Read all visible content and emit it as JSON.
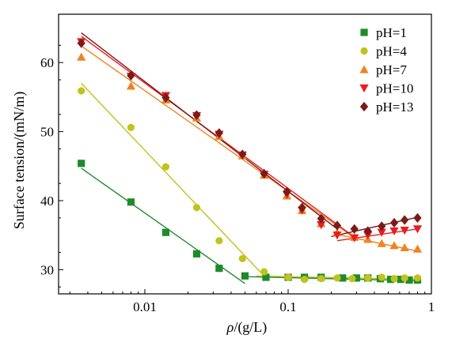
{
  "chart_data": {
    "type": "scatter",
    "xlabel_rho": "ρ",
    "xlabel_unit": "/(g/L)",
    "ylabel": "Surface tension/(mN/m)",
    "xscale": "log",
    "xlim": [
      0.0025,
      1
    ],
    "ylim": [
      26.5,
      67
    ],
    "x_ticks": [
      {
        "value": 0.01,
        "label": "0.01"
      },
      {
        "value": 0.1,
        "label": "0.1"
      },
      {
        "value": 1,
        "label": "1"
      }
    ],
    "y_ticks": [
      {
        "value": 30,
        "label": "30"
      },
      {
        "value": 40,
        "label": "40"
      },
      {
        "value": 50,
        "label": "50"
      },
      {
        "value": 60,
        "label": "60"
      }
    ],
    "legend_position": "top-right",
    "series": [
      {
        "name": "pH=1",
        "marker": "square",
        "color": "#1f8a2c",
        "x": [
          0.0036,
          0.008,
          0.014,
          0.023,
          0.033,
          0.05,
          0.07,
          0.1,
          0.13,
          0.17,
          0.24,
          0.3,
          0.36,
          0.44,
          0.52,
          0.61,
          0.7,
          0.8
        ],
        "y": [
          45.4,
          39.8,
          35.4,
          32.3,
          30.2,
          29.1,
          28.9,
          28.9,
          28.9,
          28.9,
          28.8,
          28.8,
          28.8,
          28.7,
          28.6,
          28.6,
          28.5,
          28.5
        ],
        "fits": [
          {
            "x": [
              0.0036,
              0.05
            ],
            "y": [
              44.7,
              28.0
            ]
          },
          {
            "x": [
              0.05,
              0.8
            ],
            "y": [
              29.0,
              28.4
            ]
          }
        ]
      },
      {
        "name": "pH=4",
        "marker": "circle",
        "color": "#c2c21c",
        "x": [
          0.0036,
          0.008,
          0.014,
          0.023,
          0.033,
          0.048,
          0.068,
          0.1,
          0.13,
          0.17,
          0.22,
          0.28,
          0.36,
          0.45,
          0.55,
          0.65,
          0.8
        ],
        "y": [
          55.9,
          50.6,
          44.9,
          39.0,
          34.2,
          31.6,
          29.7,
          28.9,
          28.6,
          28.7,
          28.8,
          28.7,
          28.8,
          28.9,
          28.7,
          28.8,
          28.8
        ],
        "fits": [
          {
            "x": [
              0.0036,
              0.07
            ],
            "y": [
              57.0,
              28.8
            ]
          },
          {
            "x": [
              0.06,
              0.8
            ],
            "y": [
              29.1,
              28.6
            ]
          }
        ]
      },
      {
        "name": "pH=7",
        "marker": "triangle-up",
        "color": "#ee8420",
        "x": [
          0.0036,
          0.008,
          0.014,
          0.023,
          0.033,
          0.048,
          0.068,
          0.098,
          0.125,
          0.17,
          0.22,
          0.29,
          0.36,
          0.45,
          0.55,
          0.65,
          0.8
        ],
        "y": [
          60.8,
          56.6,
          54.6,
          52.0,
          49.3,
          46.5,
          43.7,
          40.7,
          38.6,
          36.7,
          35.4,
          34.7,
          34.4,
          33.8,
          33.5,
          33.2,
          33.0
        ],
        "fits": [
          {
            "x": [
              0.0036,
              0.3
            ],
            "y": [
              62.4,
              34.4
            ]
          },
          {
            "x": [
              0.22,
              0.8
            ],
            "y": [
              35.1,
              32.7
            ]
          }
        ]
      },
      {
        "name": "pH=10",
        "marker": "triangle-down",
        "color": "#e81e1e",
        "x": [
          0.0036,
          0.008,
          0.014,
          0.023,
          0.033,
          0.048,
          0.068,
          0.098,
          0.125,
          0.17,
          0.22,
          0.29,
          0.36,
          0.45,
          0.55,
          0.65,
          0.8
        ],
        "y": [
          63.0,
          58.0,
          55.2,
          52.3,
          49.6,
          46.6,
          43.8,
          40.9,
          38.6,
          36.5,
          35.0,
          34.6,
          35.0,
          35.4,
          35.6,
          35.7,
          35.9
        ],
        "fits": [
          {
            "x": [
              0.0036,
              0.3
            ],
            "y": [
              63.8,
              34.5
            ]
          },
          {
            "x": [
              0.22,
              0.8
            ],
            "y": [
              34.2,
              35.9
            ]
          }
        ]
      },
      {
        "name": "pH=13",
        "marker": "diamond",
        "color": "#7b1a1a",
        "x": [
          0.0036,
          0.008,
          0.014,
          0.023,
          0.033,
          0.048,
          0.068,
          0.098,
          0.125,
          0.17,
          0.22,
          0.29,
          0.36,
          0.45,
          0.55,
          0.65,
          0.8
        ],
        "y": [
          62.8,
          58.1,
          54.9,
          52.4,
          49.8,
          46.7,
          43.9,
          41.3,
          39.0,
          37.4,
          36.4,
          35.9,
          35.6,
          36.3,
          36.8,
          37.2,
          37.5
        ],
        "fits": [
          {
            "x": [
              0.0036,
              0.22
            ],
            "y": [
              64.3,
              35.9
            ]
          },
          {
            "x": [
              0.2,
              0.8
            ],
            "y": [
              34.8,
              37.6
            ]
          }
        ]
      }
    ]
  }
}
